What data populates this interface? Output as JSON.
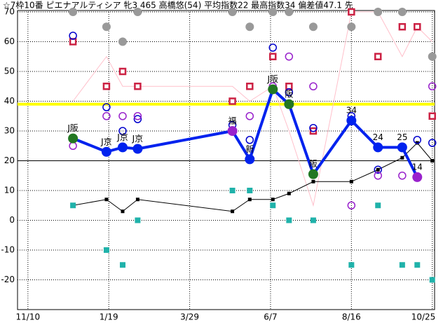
{
  "chart_data": {
    "type": "line",
    "title": "☆7枠10番 ピエナアルティシア 牝3 465 高橋悠(54) 平均指数22 最高指数34 偏差値47.1 先",
    "xlim": [
      -9,
      352
    ],
    "xticks": [
      {
        "value": 0,
        "label": "11/10"
      },
      {
        "value": 70,
        "label": "1/19"
      },
      {
        "value": 140,
        "label": "3/29"
      },
      {
        "value": 210,
        "label": "6/7"
      },
      {
        "value": 280,
        "label": "8/16"
      },
      {
        "value": 350,
        "label": "10/25"
      }
    ],
    "ylim": [
      -30,
      70
    ],
    "yticks": [
      -20,
      -10,
      0,
      10,
      20,
      30,
      40,
      50,
      60,
      70
    ],
    "grid": true,
    "reference_lines": [
      {
        "value": 39,
        "color": "#ffff00"
      },
      {
        "value": 20,
        "color": "#000000"
      }
    ],
    "series": [
      {
        "style": "thin-line",
        "color": "#ffc0cb",
        "x": [
          39,
          68,
          82,
          95,
          177,
          192,
          212,
          226,
          247,
          280,
          303,
          324,
          337,
          350
        ],
        "values": [
          40,
          55,
          45,
          45,
          45,
          40,
          45,
          30,
          5,
          70,
          70,
          55,
          65,
          60
        ]
      },
      {
        "style": "thin-line-square",
        "color": "#000000",
        "x": [
          39,
          68,
          82,
          95,
          177,
          192,
          212,
          226,
          247,
          280,
          303,
          324,
          337,
          350
        ],
        "values": [
          5,
          7,
          3,
          7,
          3,
          7,
          7,
          9,
          13,
          13,
          17,
          21,
          26,
          20
        ]
      },
      {
        "style": "dot",
        "color": "#999999",
        "x": [
          39,
          68,
          82,
          95,
          177,
          192,
          212,
          226,
          247,
          280,
          303,
          324,
          350
        ],
        "values": [
          70,
          65,
          60,
          70,
          70,
          65,
          70,
          70,
          65,
          65,
          70,
          70,
          55
        ]
      },
      {
        "style": "hollow-square",
        "color": "#cc2244",
        "x": [
          39,
          68,
          82,
          95,
          177,
          192,
          212,
          226,
          247,
          280,
          303,
          324,
          337,
          350
        ],
        "values": [
          60,
          45,
          50,
          45,
          40,
          45,
          55,
          45,
          30,
          70,
          55,
          65,
          65,
          35
        ]
      },
      {
        "style": "square",
        "color": "#20b2aa",
        "x": [
          39,
          68,
          82,
          95,
          177,
          192,
          212,
          226,
          247,
          280,
          303,
          324,
          337,
          350
        ],
        "values": [
          5,
          -10,
          -15,
          0,
          10,
          10,
          5,
          0,
          0,
          -15,
          5,
          -15,
          -15,
          -20
        ]
      },
      {
        "style": "hollow-circle",
        "color": "#0000cc",
        "x": [
          39,
          68,
          82,
          95,
          177,
          192,
          212,
          226,
          247,
          280,
          303,
          337,
          350
        ],
        "values": [
          62,
          38,
          30,
          34,
          32,
          27,
          58,
          43,
          31,
          35,
          17,
          27,
          26
        ]
      },
      {
        "style": "hollow-circle",
        "color": "#9922cc",
        "x": [
          39,
          68,
          82,
          95,
          177,
          192,
          212,
          226,
          247,
          280,
          303,
          324,
          350
        ],
        "values": [
          25,
          35,
          35,
          35,
          30,
          35,
          45,
          55,
          45,
          5,
          15,
          15,
          45
        ]
      },
      {
        "style": "main-line",
        "color": "#0022ee",
        "x": [
          39,
          68,
          82,
          95,
          177,
          192,
          212,
          226,
          247,
          280,
          303,
          324,
          337
        ],
        "values": [
          27.5,
          23,
          24.5,
          24,
          30,
          20.5,
          44,
          39,
          15.5,
          33.5,
          24.5,
          24.5,
          14.5
        ],
        "marker_colors": [
          "#227722",
          "#0022ee",
          "#0022ee",
          "#0022ee",
          "#9922cc",
          "#0022ee",
          "#227722",
          "#227722",
          "#227722",
          "#0022ee",
          "#0022ee",
          "#0022ee",
          "#9922cc"
        ],
        "value_labels": [
          "J阪",
          "J京",
          "J京",
          "J京",
          "福",
          "新",
          "J阪",
          "阪",
          "阪",
          "34",
          "24",
          "25",
          "14"
        ]
      }
    ]
  }
}
